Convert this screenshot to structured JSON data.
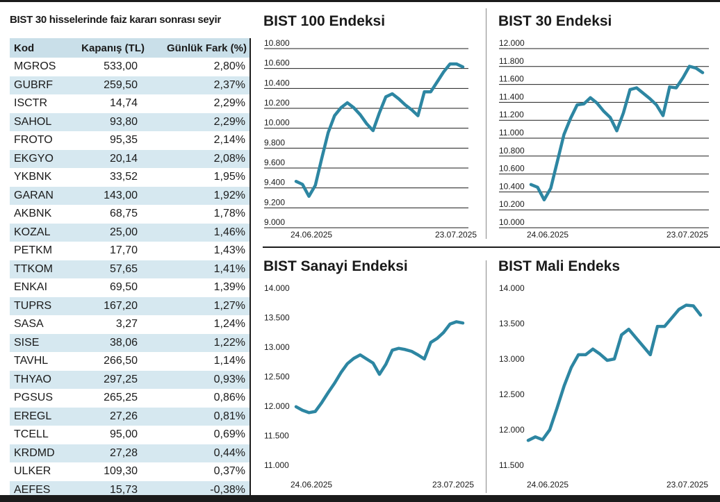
{
  "table": {
    "title": "BIST 30 hisselerinde faiz kararı sonrası seyir",
    "headers": [
      "Kod",
      "Kapanış (TL)",
      "Günlük Fark (%)"
    ],
    "rows": [
      [
        "MGROS",
        "533,00",
        "2,80%"
      ],
      [
        "GUBRF",
        "259,50",
        "2,37%"
      ],
      [
        "ISCTR",
        "14,74",
        "2,29%"
      ],
      [
        "SAHOL",
        "93,80",
        "2,29%"
      ],
      [
        "FROTO",
        "95,35",
        "2,14%"
      ],
      [
        "EKGYO",
        "20,14",
        "2,08%"
      ],
      [
        "YKBNK",
        "33,52",
        "1,95%"
      ],
      [
        "GARAN",
        "143,00",
        "1,92%"
      ],
      [
        "AKBNK",
        "68,75",
        "1,78%"
      ],
      [
        "KOZAL",
        "25,00",
        "1,46%"
      ],
      [
        "PETKM",
        "17,70",
        "1,43%"
      ],
      [
        "TTKOM",
        "57,65",
        "1,41%"
      ],
      [
        "ENKAI",
        "69,50",
        "1,39%"
      ],
      [
        "TUPRS",
        "167,20",
        "1,27%"
      ],
      [
        "SASA",
        "3,27",
        "1,24%"
      ],
      [
        "SISE",
        "38,06",
        "1,22%"
      ],
      [
        "TAVHL",
        "266,50",
        "1,14%"
      ],
      [
        "THYAO",
        "297,25",
        "0,93%"
      ],
      [
        "PGSUS",
        "265,25",
        "0,86%"
      ],
      [
        "EREGL",
        "27,26",
        "0,81%"
      ],
      [
        "TCELL",
        "95,00",
        "0,69%"
      ],
      [
        "KRDMD",
        "27,28",
        "0,44%"
      ],
      [
        "ULKER",
        "109,30",
        "0,37%"
      ],
      [
        "AEFES",
        "15,73",
        "-0,38%"
      ]
    ]
  },
  "colors": {
    "line": "#2d86a2",
    "row_alt": "#d6e8f0",
    "header_bg": "#c9dfe9",
    "grid": "#1b1b1b"
  },
  "chart_data": [
    {
      "type": "line",
      "title": "BIST 100 Endeksi",
      "x_labels": [
        "24.06.2025",
        "23.07.2025"
      ],
      "y_ticks": [
        "9.000",
        "9.200",
        "9.400",
        "9.600",
        "9.800",
        "10.000",
        "10.200",
        "10.400",
        "10.600",
        "10.800"
      ],
      "ylim": [
        9000,
        10800
      ],
      "grid": true,
      "values": [
        9410,
        9380,
        9260,
        9370,
        9640,
        9900,
        10070,
        10150,
        10200,
        10150,
        10080,
        9990,
        9920,
        10100,
        10260,
        10290,
        10240,
        10180,
        10130,
        10070,
        10310,
        10310,
        10410,
        10510,
        10590,
        10590,
        10560
      ]
    },
    {
      "type": "line",
      "title": "BIST 30 Endeksi",
      "x_labels": [
        "24.06.2025",
        "23.07.2025"
      ],
      "y_ticks": [
        "10.000",
        "10.200",
        "10.400",
        "10.600",
        "10.800",
        "11.000",
        "11.200",
        "11.400",
        "11.600",
        "11.800",
        "12.000"
      ],
      "ylim": [
        10000,
        12000
      ],
      "grid": true,
      "values": [
        10420,
        10390,
        10250,
        10380,
        10680,
        10980,
        11160,
        11310,
        11320,
        11390,
        11330,
        11240,
        11170,
        11020,
        11220,
        11480,
        11500,
        11440,
        11380,
        11310,
        11190,
        11510,
        11500,
        11610,
        11740,
        11720,
        11670
      ]
    },
    {
      "type": "line",
      "title": "BIST Sanayi Endeksi",
      "x_labels": [
        "24.06.2025",
        "23.07.2025"
      ],
      "y_ticks": [
        "11.000",
        "11.500",
        "12.000",
        "12.500",
        "13.000",
        "13.500",
        "14.000"
      ],
      "ylim": [
        11000,
        14000
      ],
      "grid": false,
      "values": [
        11990,
        11930,
        11890,
        11910,
        12060,
        12230,
        12390,
        12570,
        12720,
        12810,
        12870,
        12800,
        12730,
        12540,
        12710,
        12950,
        12980,
        12960,
        12930,
        12870,
        12800,
        13080,
        13150,
        13250,
        13390,
        13430,
        13410
      ]
    },
    {
      "type": "line",
      "title": "BIST Mali Endeks",
      "x_labels": [
        "24.06.2025",
        "23.07.2025"
      ],
      "y_ticks": [
        "11.500",
        "12.000",
        "12.500",
        "13.000",
        "13.500",
        "14.000"
      ],
      "ylim": [
        11500,
        14000
      ],
      "grid": false,
      "values": [
        11850,
        11900,
        11860,
        12000,
        12300,
        12620,
        12880,
        13060,
        13060,
        13140,
        13070,
        12980,
        13000,
        13340,
        13420,
        13300,
        13180,
        13060,
        13460,
        13460,
        13580,
        13700,
        13760,
        13750,
        13620
      ]
    }
  ]
}
